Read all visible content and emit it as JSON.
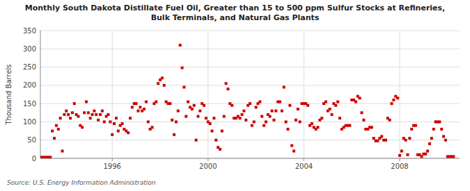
{
  "chart_data": {
    "type": "scatter",
    "title": "Monthly South Dakota Distillate Fuel Oil, Greater than 15 to 500 ppm Sulfur Stocks at Refineries,\nBulk Terminals, and Natural Gas Plants",
    "ylabel": "Thousand Barrels",
    "source": "Source: U.S. Energy Information Administration",
    "color": "#cc0000",
    "marker": "square",
    "grid": true,
    "xlim": [
      1993.0,
      2010.5
    ],
    "xticks": [
      1996,
      2000,
      2004,
      2008
    ],
    "ylim": [
      0,
      350
    ],
    "yticks": [
      0,
      50,
      100,
      150,
      200,
      250,
      300,
      350
    ],
    "x": [
      1993.0,
      1993.083,
      1993.167,
      1993.25,
      1993.333,
      1993.417,
      1993.5,
      1993.583,
      1993.667,
      1993.75,
      1993.833,
      1993.917,
      1994.0,
      1994.083,
      1994.167,
      1994.25,
      1994.333,
      1994.417,
      1994.5,
      1994.583,
      1994.667,
      1994.75,
      1994.833,
      1994.917,
      1995.0,
      1995.083,
      1995.167,
      1995.25,
      1995.333,
      1995.417,
      1995.5,
      1995.583,
      1995.667,
      1995.75,
      1995.833,
      1995.917,
      1996.0,
      1996.083,
      1996.167,
      1996.25,
      1996.333,
      1996.417,
      1996.5,
      1996.583,
      1996.667,
      1996.75,
      1996.833,
      1996.917,
      1997.0,
      1997.083,
      1997.167,
      1997.25,
      1997.333,
      1997.417,
      1997.5,
      1997.583,
      1997.667,
      1997.75,
      1997.833,
      1997.917,
      1998.0,
      1998.083,
      1998.167,
      1998.25,
      1998.333,
      1998.417,
      1998.5,
      1998.583,
      1998.667,
      1998.75,
      1998.833,
      1998.917,
      1999.0,
      1999.083,
      1999.167,
      1999.25,
      1999.333,
      1999.417,
      1999.5,
      1999.583,
      1999.667,
      1999.75,
      1999.833,
      1999.917,
      2000.0,
      2000.083,
      2000.167,
      2000.25,
      2000.333,
      2000.417,
      2000.5,
      2000.583,
      2000.667,
      2000.75,
      2000.833,
      2000.917,
      2001.0,
      2001.083,
      2001.167,
      2001.25,
      2001.333,
      2001.417,
      2001.5,
      2001.583,
      2001.667,
      2001.75,
      2001.833,
      2001.917,
      2002.0,
      2002.083,
      2002.167,
      2002.25,
      2002.333,
      2002.417,
      2002.5,
      2002.583,
      2002.667,
      2002.75,
      2002.833,
      2002.917,
      2003.0,
      2003.083,
      2003.167,
      2003.25,
      2003.333,
      2003.417,
      2003.5,
      2003.583,
      2003.667,
      2003.75,
      2003.833,
      2003.917,
      2004.0,
      2004.083,
      2004.167,
      2004.25,
      2004.333,
      2004.417,
      2004.5,
      2004.583,
      2004.667,
      2004.75,
      2004.833,
      2004.917,
      2005.0,
      2005.083,
      2005.167,
      2005.25,
      2005.333,
      2005.417,
      2005.5,
      2005.583,
      2005.667,
      2005.75,
      2005.833,
      2005.917,
      2006.0,
      2006.083,
      2006.167,
      2006.25,
      2006.333,
      2006.417,
      2006.5,
      2006.583,
      2006.667,
      2006.75,
      2006.833,
      2006.917,
      2007.0,
      2007.083,
      2007.167,
      2007.25,
      2007.333,
      2007.417,
      2007.5,
      2007.583,
      2007.667,
      2007.75,
      2007.833,
      2007.917,
      2008.0,
      2008.083,
      2008.167,
      2008.25,
      2008.333,
      2008.417,
      2008.5,
      2008.583,
      2008.667,
      2008.75,
      2008.833,
      2008.917,
      2009.0,
      2009.083,
      2009.167,
      2009.25,
      2009.333,
      2009.417,
      2009.5,
      2009.583,
      2009.667,
      2009.75,
      2009.833,
      2009.917,
      2010.0,
      2010.083,
      2010.167,
      2010.25
    ],
    "values": [
      3,
      3,
      3,
      3,
      3,
      3,
      75,
      55,
      90,
      80,
      110,
      20,
      120,
      130,
      120,
      110,
      125,
      150,
      120,
      115,
      90,
      85,
      125,
      155,
      125,
      110,
      120,
      130,
      120,
      105,
      120,
      130,
      100,
      115,
      120,
      100,
      65,
      95,
      110,
      75,
      90,
      95,
      80,
      75,
      70,
      110,
      140,
      150,
      150,
      130,
      140,
      130,
      135,
      155,
      100,
      80,
      85,
      150,
      155,
      205,
      215,
      220,
      200,
      155,
      150,
      150,
      105,
      65,
      100,
      130,
      310,
      248,
      195,
      115,
      155,
      140,
      135,
      145,
      50,
      115,
      130,
      150,
      145,
      110,
      100,
      95,
      75,
      110,
      50,
      30,
      25,
      75,
      115,
      205,
      190,
      150,
      145,
      110,
      110,
      115,
      110,
      120,
      130,
      105,
      145,
      150,
      90,
      100,
      140,
      150,
      155,
      115,
      90,
      100,
      120,
      115,
      130,
      105,
      130,
      155,
      155,
      130,
      195,
      100,
      80,
      145,
      35,
      20,
      105,
      135,
      100,
      150,
      150,
      150,
      145,
      90,
      95,
      85,
      80,
      85,
      105,
      110,
      150,
      155,
      130,
      135,
      120,
      150,
      145,
      155,
      110,
      80,
      85,
      90,
      90,
      90,
      160,
      160,
      155,
      170,
      165,
      125,
      105,
      80,
      80,
      85,
      85,
      55,
      48,
      48,
      55,
      60,
      50,
      50,
      110,
      105,
      150,
      160,
      170,
      165,
      8,
      20,
      55,
      50,
      10,
      55,
      80,
      90,
      90,
      10,
      10,
      5,
      12,
      12,
      20,
      40,
      55,
      80,
      100,
      100,
      100,
      80,
      60,
      50,
      5,
      5,
      5,
      5
    ]
  }
}
